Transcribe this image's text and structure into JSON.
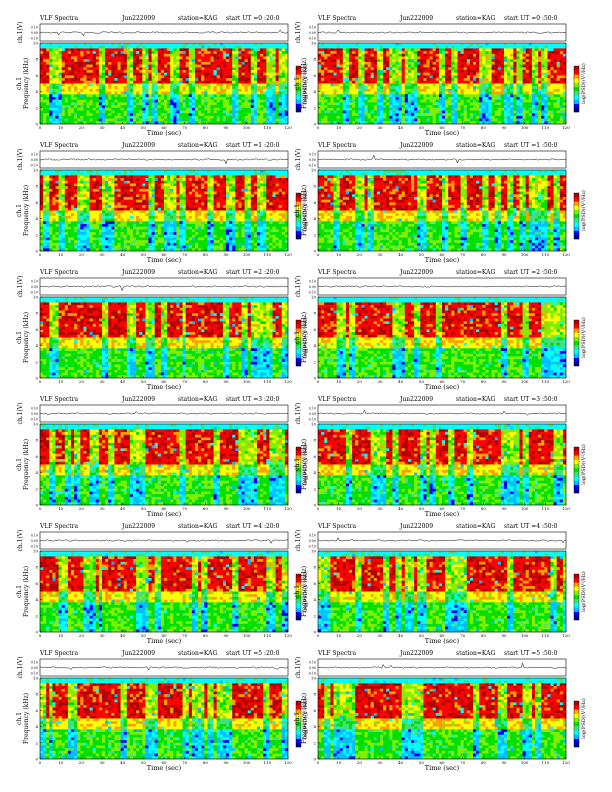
{
  "page": {
    "colors": {
      "background": "#ffffff",
      "colormap": [
        "#000080",
        "#0000ff",
        "#00c0ff",
        "#00ffff",
        "#40e080",
        "#00e000",
        "#80f000",
        "#ffff00",
        "#ffa000",
        "#ff0000",
        "#b00000"
      ],
      "trace": "#000000"
    }
  },
  "chart_data": [
    {
      "type": "heatmap",
      "title": "VLF Spectra",
      "date": "Jun222009",
      "station": "station=KAG",
      "start": "start  UT =0 :20:0",
      "top_ylabel": "ch.1(V)",
      "top_yticks": [
        "0.10",
        "0.00",
        "-0.10"
      ],
      "ylabel": "Frequency (kHz)",
      "ylabel_prefix": "ch.1",
      "yticks": [
        "0",
        "2",
        "4",
        "6",
        "8",
        "10"
      ],
      "ylim": [
        0,
        10
      ],
      "xlabel": "Time (sec)",
      "xticks": [
        "0",
        "10",
        "20",
        "30",
        "40",
        "50",
        "60",
        "70",
        "80",
        "90",
        "100",
        "110",
        "120"
      ],
      "xlim": [
        0,
        120
      ],
      "colorbar_label": "log(PSD)(V²/Hz)"
    },
    {
      "type": "heatmap",
      "title": "VLF Spectra",
      "date": "Jun222009",
      "station": "station=KAG",
      "start": "start  UT =0 :50:0",
      "top_ylabel": "ch.1(V)",
      "top_yticks": [
        "0.10",
        "0.00",
        "-0.10"
      ],
      "ylabel": "Frequency (kHz)",
      "ylabel_prefix": "ch.1",
      "yticks": [
        "0",
        "2",
        "4",
        "6",
        "8",
        "10"
      ],
      "ylim": [
        0,
        10
      ],
      "xlabel": "Time (sec)",
      "xticks": [
        "0",
        "10",
        "20",
        "30",
        "40",
        "50",
        "60",
        "70",
        "80",
        "90",
        "100",
        "110",
        "120"
      ],
      "xlim": [
        0,
        120
      ],
      "colorbar_label": "log(PSD)(V²/Hz)"
    },
    {
      "type": "heatmap",
      "title": "VLF Spectra",
      "date": "Jun222009",
      "station": "station=KAG",
      "start": "start  UT =1 :20:0",
      "top_ylabel": "ch.1(V)",
      "top_yticks": [
        "0.10",
        "0.00",
        "-0.10"
      ],
      "ylabel": "Frequency (kHz)",
      "ylabel_prefix": "ch.1",
      "yticks": [
        "0",
        "2",
        "4",
        "6",
        "8",
        "10"
      ],
      "ylim": [
        0,
        10
      ],
      "xlabel": "Time (sec)",
      "xticks": [
        "0",
        "10",
        "20",
        "30",
        "40",
        "50",
        "60",
        "70",
        "80",
        "90",
        "100",
        "110",
        "120"
      ],
      "xlim": [
        0,
        120
      ],
      "colorbar_label": "log(PSD)(V²/Hz)"
    },
    {
      "type": "heatmap",
      "title": "VLF Spectra",
      "date": "Jun222009",
      "station": "station=KAG",
      "start": "start  UT =1 :50:0",
      "top_ylabel": "ch.1(V)",
      "top_yticks": [
        "0.10",
        "0.00",
        "-0.10"
      ],
      "ylabel": "Frequency (kHz)",
      "ylabel_prefix": "ch.1",
      "yticks": [
        "0",
        "2",
        "4",
        "6",
        "8",
        "10"
      ],
      "ylim": [
        0,
        10
      ],
      "xlabel": "Time (sec)",
      "xticks": [
        "0",
        "10",
        "20",
        "30",
        "40",
        "50",
        "60",
        "70",
        "80",
        "90",
        "100",
        "110",
        "120"
      ],
      "xlim": [
        0,
        120
      ],
      "colorbar_label": "log(PSD)(V²/Hz)"
    },
    {
      "type": "heatmap",
      "title": "VLF Spectra",
      "date": "Jun222009",
      "station": "station=KAG",
      "start": "start  UT =2 :20:0",
      "top_ylabel": "ch.1(V)",
      "top_yticks": [
        "0.10",
        "0.00",
        "-0.10"
      ],
      "ylabel": "Frequency (kHz)",
      "ylabel_prefix": "ch.1",
      "yticks": [
        "0",
        "2",
        "4",
        "6",
        "8",
        "10"
      ],
      "ylim": [
        0,
        10
      ],
      "xlabel": "Time (sec)",
      "xticks": [
        "0",
        "10",
        "20",
        "30",
        "40",
        "50",
        "60",
        "70",
        "80",
        "90",
        "100",
        "110",
        "120"
      ],
      "xlim": [
        0,
        120
      ],
      "colorbar_label": "log(PSD)(V²/Hz)"
    },
    {
      "type": "heatmap",
      "title": "VLF Spectra",
      "date": "Jun222009",
      "station": "station=KAG",
      "start": "start  UT =2 :50:0",
      "top_ylabel": "ch.1(V)",
      "top_yticks": [
        "0.10",
        "0.00",
        "-0.10"
      ],
      "ylabel": "Frequency (kHz)",
      "ylabel_prefix": "ch.1",
      "yticks": [
        "0",
        "2",
        "4",
        "6",
        "8",
        "10"
      ],
      "ylim": [
        0,
        10
      ],
      "xlabel": "Time (sec)",
      "xticks": [
        "0",
        "10",
        "20",
        "30",
        "40",
        "50",
        "60",
        "70",
        "80",
        "90",
        "100",
        "110",
        "120"
      ],
      "xlim": [
        0,
        120
      ],
      "colorbar_label": "log(PSD)(V²/Hz)"
    },
    {
      "type": "heatmap",
      "title": "VLF Spectra",
      "date": "Jun222009",
      "station": "station=KAG",
      "start": "start  UT =3 :20:0",
      "top_ylabel": "ch.1(V)",
      "top_yticks": [
        "0.10",
        "0.00",
        "-0.10"
      ],
      "ylabel": "Frequency (kHz)",
      "ylabel_prefix": "ch.1",
      "yticks": [
        "0",
        "2",
        "4",
        "6",
        "8",
        "10"
      ],
      "ylim": [
        0,
        10
      ],
      "xlabel": "Time (sec)",
      "xticks": [
        "0",
        "10",
        "20",
        "30",
        "40",
        "50",
        "60",
        "70",
        "80",
        "90",
        "100",
        "110",
        "120"
      ],
      "xlim": [
        0,
        120
      ],
      "colorbar_label": "log(PSD)(V²/Hz)"
    },
    {
      "type": "heatmap",
      "title": "VLF Spectra",
      "date": "Jun222009",
      "station": "station=KAG",
      "start": "start  UT =3 :50:0",
      "top_ylabel": "ch.1(V)",
      "top_yticks": [
        "0.10",
        "0.00",
        "-0.10"
      ],
      "ylabel": "Frequency (kHz)",
      "ylabel_prefix": "ch.1",
      "yticks": [
        "0",
        "2",
        "4",
        "6",
        "8",
        "10"
      ],
      "ylim": [
        0,
        10
      ],
      "xlabel": "Time (sec)",
      "xticks": [
        "0",
        "10",
        "20",
        "30",
        "40",
        "50",
        "60",
        "70",
        "80",
        "90",
        "100",
        "110",
        "120"
      ],
      "xlim": [
        0,
        120
      ],
      "colorbar_label": "log(PSD)(V²/Hz)"
    },
    {
      "type": "heatmap",
      "title": "VLF Spectra",
      "date": "Jun222009",
      "station": "station=KAG",
      "start": "start  UT =4 :20:0",
      "top_ylabel": "ch.1(V)",
      "top_yticks": [
        "0.10",
        "0.00",
        "-0.10"
      ],
      "ylabel": "Frequency (kHz)",
      "ylabel_prefix": "ch.1",
      "yticks": [
        "0",
        "2",
        "4",
        "6",
        "8",
        "10"
      ],
      "ylim": [
        0,
        10
      ],
      "xlabel": "Time (sec)",
      "xticks": [
        "0",
        "10",
        "20",
        "30",
        "40",
        "50",
        "60",
        "70",
        "80",
        "90",
        "100",
        "110",
        "120"
      ],
      "xlim": [
        0,
        120
      ],
      "colorbar_label": "log(PSD)(V²/Hz)"
    },
    {
      "type": "heatmap",
      "title": "VLF Spectra",
      "date": "Jun222009",
      "station": "station=KAG",
      "start": "start  UT =4 :50:0",
      "top_ylabel": "ch.1(V)",
      "top_yticks": [
        "0.10",
        "0.00",
        "-0.10"
      ],
      "ylabel": "Frequency (kHz)",
      "ylabel_prefix": "ch.1",
      "yticks": [
        "0",
        "2",
        "4",
        "6",
        "8",
        "10"
      ],
      "ylim": [
        0,
        10
      ],
      "xlabel": "Time (sec)",
      "xticks": [
        "0",
        "10",
        "20",
        "30",
        "40",
        "50",
        "60",
        "70",
        "80",
        "90",
        "100",
        "110",
        "120"
      ],
      "xlim": [
        0,
        120
      ],
      "colorbar_label": "log(PSD)(V²/Hz)"
    },
    {
      "type": "heatmap",
      "title": "VLF Spectra",
      "date": "Jun222009",
      "station": "station=KAG",
      "start": "start  UT =5 :20:0",
      "top_ylabel": "ch.1(V)",
      "top_yticks": [
        "0.10",
        "0.00",
        "-0.10"
      ],
      "ylabel": "Frequency (kHz)",
      "ylabel_prefix": "ch.1",
      "yticks": [
        "0",
        "2",
        "4",
        "6",
        "8",
        "10"
      ],
      "ylim": [
        0,
        10
      ],
      "xlabel": "Time (sec)",
      "xticks": [
        "0",
        "10",
        "20",
        "30",
        "40",
        "50",
        "60",
        "70",
        "80",
        "90",
        "100",
        "110",
        "120"
      ],
      "xlim": [
        0,
        120
      ],
      "colorbar_label": "log(PSD)(V²/Hz)"
    },
    {
      "type": "heatmap",
      "title": "VLF Spectra",
      "date": "Jun222009",
      "station": "station=KAG",
      "start": "start  UT =5 :50:0",
      "top_ylabel": "ch.1(V)",
      "top_yticks": [
        "0.10",
        "0.00",
        "-0.10"
      ],
      "ylabel": "Frequency (kHz)",
      "ylabel_prefix": "ch.1",
      "yticks": [
        "0",
        "2",
        "4",
        "6",
        "8",
        "10"
      ],
      "ylim": [
        0,
        10
      ],
      "xlabel": "Time (sec)",
      "xticks": [
        "0",
        "10",
        "20",
        "30",
        "40",
        "50",
        "60",
        "70",
        "80",
        "90",
        "100",
        "110",
        "120"
      ],
      "xlim": [
        0,
        120
      ],
      "colorbar_label": "log(PSD)(V²/Hz)"
    }
  ]
}
